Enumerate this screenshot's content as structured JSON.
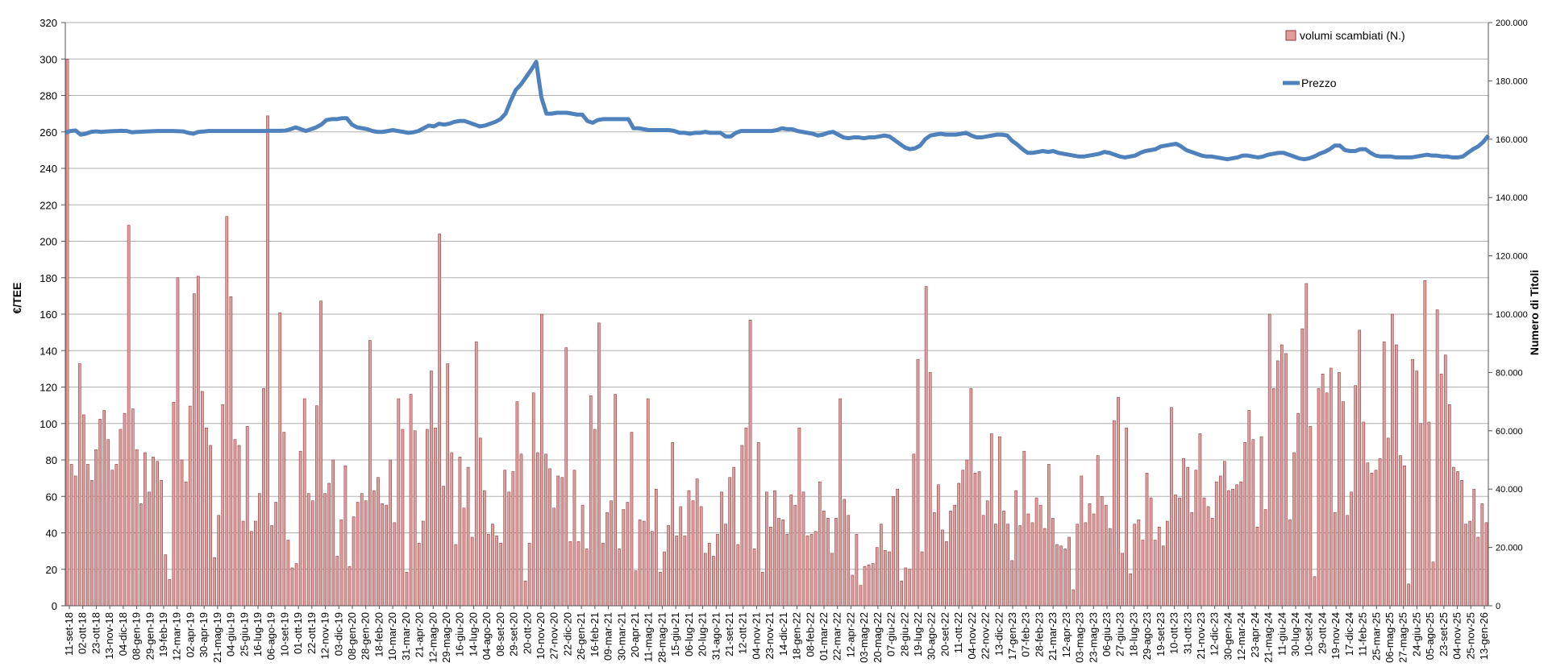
{
  "chart_data": {
    "type": "bar+line",
    "title": "",
    "ylabel_left": "€/TEE",
    "ylabel_right": "Numero di Titoli",
    "ylim_left": [
      0,
      320
    ],
    "ylim_right": [
      0,
      200000
    ],
    "yticks_left": [
      "0",
      "20",
      "40",
      "60",
      "80",
      "100",
      "120",
      "140",
      "160",
      "180",
      "200",
      "220",
      "240",
      "260",
      "280",
      "300",
      "320"
    ],
    "yticks_right": [
      "0",
      "20.000",
      "40.000",
      "60.000",
      "80.000",
      "100.000",
      "120.000",
      "140.000",
      "160.000",
      "180.000",
      "200.000"
    ],
    "grid": true,
    "legend_position": "top-right",
    "x_tick_labels": [
      "11-set-18",
      "02-ott-18",
      "23-ott-18",
      "13-nov-18",
      "04-dic-18",
      "08-gen-19",
      "29-gen-19",
      "19-feb-19",
      "12-mar-19",
      "02-apr-19",
      "30-apr-19",
      "21-mag-19",
      "04-giu-19",
      "25-giu-19",
      "16-lug-19",
      "06-ago-19",
      "10-set-19",
      "01-ott-19",
      "22-ott-19",
      "12-nov-19",
      "03-dic-19",
      "08-gen-20",
      "28-gen-20",
      "18-feb-20",
      "10-mar-20",
      "31-mar-20",
      "21-apr-20",
      "12-mag-20",
      "29-mag-20",
      "16-giu-20",
      "14-lug-20",
      "04-ago-20",
      "08-set-20",
      "29-set-20",
      "20-ott-20",
      "10-nov-20",
      "27-nov-20",
      "22-dic-20",
      "26-gen-21",
      "16-feb-21",
      "09-mar-21",
      "30-mar-21",
      "20-apr-21",
      "11-mag-21",
      "28-mag-21",
      "15-giu-21",
      "06-lug-21",
      "20-lug-21",
      "31-ago-21",
      "21-set-21",
      "12-ott-21",
      "04-nov-21",
      "23-nov-21",
      "14-dic-21",
      "18-gen-22",
      "08-feb-22",
      "01-mar-22",
      "22-mar-22",
      "12-apr-22",
      "03-mag-22",
      "20-mag-22",
      "07-giu-22",
      "28-giu-22",
      "19-lug-22",
      "30-ago-22",
      "20-set-22",
      "11-ott-22",
      "04-nov-22",
      "22-nov-22",
      "13-dic-22",
      "17-gen-23",
      "07-feb-23",
      "28-feb-23",
      "21-mar-23",
      "12-apr-23",
      "03-mag-23",
      "23-mag-23",
      "06-giu-23",
      "27-giu-23",
      "18-lug-23",
      "29-ago-23",
      "19-set-23",
      "10-ott-23",
      "31-ott-23",
      "21-nov-23",
      "12-dic-23",
      "30-gen-24",
      "12-mar-24",
      "23-apr-24",
      "21-mag-24",
      "11-giu-24",
      "30-lug-24",
      "10-set-24",
      "29-ott-24",
      "19-nov-24",
      "17-dic-24",
      "11-feb-25",
      "25-mar-25",
      "06-mag-25",
      "27-mag-25",
      "24-giu-25",
      "05-ago-25",
      "23-set-25",
      "04-nov-25",
      "25-nov-25",
      "13-gen-26"
    ],
    "series": [
      {
        "name": "volumi scambiati (N.)",
        "type": "bar",
        "axis": "right",
        "color": "#e39c9c",
        "values": [
          187500,
          48500,
          44500,
          83000,
          65500,
          48500,
          43000,
          53500,
          64000,
          67000,
          57000,
          46500,
          48500,
          60500,
          66000,
          130500,
          67500,
          53500,
          35000,
          52500,
          39000,
          51000,
          49500,
          43000,
          17500,
          9000,
          69800,
          112500,
          50000,
          42500,
          68500,
          107000,
          113000,
          73500,
          61000,
          55000,
          16500,
          31000,
          69000,
          133500,
          106000,
          57000,
          55000,
          29000,
          61500,
          25500,
          29000,
          38500,
          74500,
          168000,
          27500,
          35500,
          100500,
          59500,
          22500,
          13000,
          14500,
          53000,
          71000,
          38500,
          36000,
          68600,
          104500,
          38500,
          42000,
          50000,
          17000,
          29500,
          48000,
          13500,
          30500,
          35500,
          38500,
          36000,
          91000,
          39500,
          44000,
          35000,
          34500,
          50000,
          28500,
          71000,
          60500,
          11500,
          72500,
          60000,
          21500,
          29000,
          60500,
          80500,
          61000,
          127500,
          41000,
          83000,
          52500,
          21000,
          51000,
          33500,
          47500,
          23500,
          90500,
          57500,
          39500,
          24500,
          28000,
          24000,
          21500,
          46500,
          39000,
          46000,
          70000,
          52000,
          8500,
          21500,
          73000,
          52500,
          100000,
          52000,
          47000,
          33500,
          44500,
          44000,
          88500,
          22000,
          46500,
          22000,
          34500,
          19500,
          72000,
          60500,
          97000,
          21500,
          32000,
          36000,
          72500,
          19500,
          33000,
          35500,
          59500,
          12000,
          29500,
          29000,
          71000,
          25500,
          40000,
          11500,
          18500,
          27500,
          56000,
          24000,
          34000,
          24000,
          39500,
          36000,
          43500,
          34000,
          18000,
          21500,
          17000,
          24500,
          39000,
          28000,
          44000,
          47500,
          21000,
          55000,
          61000,
          98000,
          19500,
          56000,
          11500,
          39000,
          27000,
          39500,
          30000,
          29500,
          24500,
          38000,
          34500,
          61000,
          39000,
          24000,
          24500,
          25500,
          42500,
          32500,
          30000,
          18000,
          30000,
          71000,
          36500,
          31000,
          10500,
          24500,
          7000,
          13500,
          14000,
          14500,
          20000,
          28000,
          19000,
          18500,
          37500,
          40000,
          8500,
          13000,
          12500,
          52000,
          84500,
          18500,
          109500,
          80000,
          32000,
          41500,
          26000,
          22000,
          32500,
          34500,
          42000,
          46500,
          50000,
          74500,
          45500,
          46000,
          31000,
          36000,
          59000,
          28000,
          58000,
          32500,
          28000,
          15500,
          39500,
          27500,
          53000,
          31500,
          28500,
          37000,
          34500,
          26500,
          48500,
          30000,
          21000,
          20500,
          19500,
          23500,
          5500,
          28000,
          44500,
          28500,
          35000,
          31500,
          51500,
          37500,
          34500,
          26500,
          63500,
          71500,
          18000,
          61000,
          11000,
          28000,
          29500,
          22500,
          45500,
          37000,
          22500,
          27000,
          20500,
          29000,
          68000,
          38000,
          37000,
          50500,
          47500,
          32000,
          46500,
          59000,
          37000,
          34000,
          30000,
          42500,
          44500,
          49500,
          39500,
          40000,
          41500,
          42500,
          56000,
          67000,
          57000,
          27000,
          58000,
          33000,
          100000,
          74500,
          84000,
          89500,
          86500,
          29500,
          52500,
          66000,
          95000,
          110500,
          61500,
          10000,
          74500,
          79500,
          73000,
          81500,
          32000,
          80000,
          70000,
          31000,
          39000,
          75500,
          94500,
          63000,
          49000,
          45500,
          46500,
          50500,
          90500,
          57500,
          100000,
          89500,
          51500,
          48000,
          7500,
          84500,
          80500,
          62500,
          111500,
          63000,
          15000,
          101500,
          79500,
          86000,
          69000,
          47500,
          46000,
          43000,
          28000,
          29000,
          40000,
          23500,
          35000,
          28500
        ]
      },
      {
        "name": "Prezzo",
        "type": "line",
        "axis": "left",
        "color": "#4f81bd",
        "values": [
          259.5,
          260.5,
          260.8,
          258.5,
          259.0,
          260.0,
          260.3,
          260.0,
          260.2,
          260.4,
          260.5,
          260.6,
          260.5,
          259.8,
          260.0,
          260.1,
          260.3,
          260.4,
          260.5,
          260.5,
          260.5,
          260.5,
          260.4,
          260.3,
          259.5,
          259.0,
          260.0,
          260.2,
          260.5,
          260.5,
          260.5,
          260.5,
          260.5,
          260.5,
          260.5,
          260.5,
          260.5,
          260.5,
          260.5,
          260.5,
          260.6,
          260.6,
          260.6,
          260.7,
          261.5,
          262.5,
          261.5,
          260.5,
          261.5,
          262.5,
          264.0,
          266.5,
          267.0,
          267.0,
          267.5,
          267.5,
          264.0,
          262.5,
          262.0,
          261.5,
          260.5,
          260.0,
          260.0,
          260.5,
          261.0,
          260.5,
          260.0,
          259.5,
          259.8,
          260.5,
          262.0,
          263.5,
          263.0,
          264.5,
          264.0,
          264.5,
          265.5,
          266.0,
          266.0,
          265.0,
          264.0,
          263.0,
          263.5,
          264.5,
          265.5,
          267.0,
          270.0,
          277.0,
          283.0,
          286.0,
          290.0,
          294.0,
          298.5,
          279.0,
          270.0,
          270.0,
          270.5,
          270.5,
          270.5,
          270.0,
          269.5,
          269.5,
          266.0,
          265.0,
          266.5,
          267.0,
          267.0,
          267.0,
          267.0,
          267.0,
          267.0,
          262.0,
          262.0,
          261.5,
          261.0,
          261.0,
          261.0,
          261.0,
          261.0,
          260.5,
          259.5,
          259.5,
          259.0,
          259.5,
          259.5,
          260.0,
          259.5,
          259.5,
          259.5,
          257.5,
          257.5,
          259.5,
          260.5,
          260.5,
          260.5,
          260.5,
          260.5,
          260.5,
          260.5,
          261.0,
          262.0,
          261.5,
          261.5,
          260.5,
          260.0,
          259.5,
          259.0,
          258.0,
          258.5,
          259.5,
          260.0,
          258.5,
          257.0,
          256.5,
          257.0,
          257.0,
          256.5,
          257.0,
          257.0,
          257.5,
          258.0,
          257.5,
          255.5,
          253.5,
          251.5,
          250.5,
          251.0,
          252.5,
          256.0,
          258.0,
          258.5,
          259.0,
          258.5,
          258.5,
          258.5,
          259.0,
          259.5,
          258.0,
          257.0,
          257.0,
          257.5,
          258.0,
          258.5,
          258.5,
          258.0,
          255.0,
          253.0,
          250.5,
          248.5,
          248.5,
          249.0,
          249.5,
          249.0,
          249.5,
          248.5,
          248.0,
          247.5,
          247.0,
          246.5,
          246.5,
          247.0,
          247.5,
          248.0,
          249.0,
          248.5,
          247.5,
          246.5,
          246.0,
          246.5,
          247.0,
          248.5,
          249.5,
          250.0,
          250.5,
          252.0,
          252.5,
          253.0,
          253.5,
          252.0,
          250.0,
          249.0,
          248.0,
          247.0,
          246.5,
          246.5,
          246.0,
          245.5,
          245.0,
          245.5,
          246.0,
          247.0,
          247.0,
          246.5,
          246.0,
          246.5,
          247.5,
          248.0,
          248.5,
          248.5,
          247.5,
          246.5,
          245.5,
          245.0,
          245.5,
          246.5,
          248.0,
          249.0,
          250.5,
          252.5,
          252.5,
          250.0,
          249.5,
          249.5,
          250.5,
          250.5,
          248.5,
          247.0,
          246.5,
          246.5,
          246.5,
          246.0,
          246.0,
          246.0,
          246.0,
          246.5,
          247.0,
          247.5,
          247.0,
          247.0,
          246.5,
          246.5,
          246.0,
          246.0,
          246.5,
          248.5,
          250.5,
          252.0,
          254.5,
          258.0
        ]
      }
    ]
  }
}
